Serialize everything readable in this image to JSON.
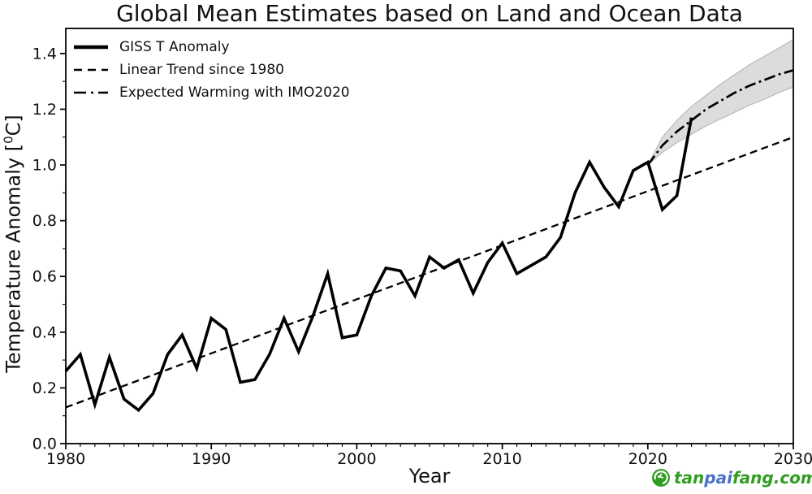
{
  "chart": {
    "title": "Global Mean Estimates based on Land and Ocean Data",
    "xlabel": "Year",
    "ylabel_prefix": "Temperature Anomaly [",
    "ylabel_sup": "0",
    "ylabel_suffix": "C]"
  },
  "legend": {
    "items": [
      {
        "label": "GISS T Anomaly",
        "style": "solid"
      },
      {
        "label": "Linear Trend since 1980",
        "style": "dashed"
      },
      {
        "label": "Expected Warming with IMO2020",
        "style": "dashdot"
      }
    ]
  },
  "watermark": {
    "logo": "tanpaifang-logo",
    "logo_color": "#2f9e1f",
    "parts": [
      {
        "text": "tan",
        "color": "#2f9e1f"
      },
      {
        "text": "pai",
        "color": "#4a70c8"
      },
      {
        "text": "fang.com",
        "color": "#2f9e1f"
      }
    ]
  },
  "chart_data": {
    "type": "line",
    "title": "Global Mean Estimates based on Land and Ocean Data",
    "xlabel": "Year",
    "ylabel": "Temperature Anomaly [0C]",
    "xlim": [
      1980,
      2030
    ],
    "ylim": [
      0,
      1.49
    ],
    "x_ticks": [
      "1980",
      "1990",
      "2000",
      "2010",
      "2020",
      "2030"
    ],
    "y_ticks": [
      "0.0",
      "0.2",
      "0.4",
      "0.6",
      "0.8",
      "1.0",
      "1.2",
      "1.4"
    ],
    "x_minor_step": 1,
    "y_minor_step": 0.1,
    "grid": false,
    "legend_position": "upper left",
    "line_color": "#000000",
    "series": [
      {
        "name": "GISS T Anomaly",
        "style": "solid",
        "x_start": 1980,
        "x_step": 1,
        "values": [
          0.26,
          0.32,
          0.14,
          0.31,
          0.16,
          0.12,
          0.18,
          0.32,
          0.39,
          0.27,
          0.45,
          0.41,
          0.22,
          0.23,
          0.32,
          0.45,
          0.33,
          0.46,
          0.61,
          0.38,
          0.39,
          0.53,
          0.63,
          0.62,
          0.53,
          0.67,
          0.63,
          0.66,
          0.54,
          0.65,
          0.72,
          0.61,
          0.64,
          0.67,
          0.74,
          0.9,
          1.01,
          0.92,
          0.85,
          0.98,
          1.01,
          0.84,
          0.89,
          1.17
        ]
      },
      {
        "name": "Linear Trend since 1980",
        "style": "dashed",
        "points": [
          [
            1980,
            0.13
          ],
          [
            2030,
            1.1
          ]
        ]
      },
      {
        "name": "Expected Warming with IMO2020",
        "style": "dashdot",
        "points": [
          [
            2020,
            1.0
          ],
          [
            2021,
            1.07
          ],
          [
            2022,
            1.12
          ],
          [
            2023,
            1.16
          ],
          [
            2024,
            1.2
          ],
          [
            2025,
            1.23
          ],
          [
            2026,
            1.26
          ],
          [
            2027,
            1.285
          ],
          [
            2028,
            1.305
          ],
          [
            2029,
            1.325
          ],
          [
            2030,
            1.34
          ]
        ]
      }
    ],
    "uncertainty_band": {
      "x": [
        2020,
        2021,
        2022,
        2023,
        2024,
        2025,
        2026,
        2027,
        2028,
        2029,
        2030
      ],
      "top": [
        1.0,
        1.1,
        1.16,
        1.21,
        1.25,
        1.29,
        1.325,
        1.36,
        1.39,
        1.42,
        1.45
      ],
      "bottom": [
        1.0,
        1.045,
        1.08,
        1.11,
        1.14,
        1.165,
        1.19,
        1.215,
        1.235,
        1.26,
        1.28
      ],
      "fill": "#dcdcdc",
      "edge": "#b0b0b0"
    }
  }
}
